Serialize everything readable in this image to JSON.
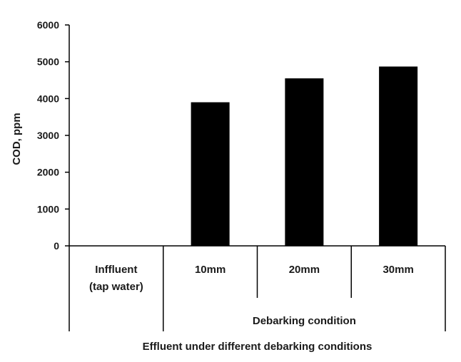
{
  "chart_data": {
    "type": "bar",
    "ylabel": "COD, ppm",
    "ylim": [
      0,
      6000
    ],
    "yticks": [
      0,
      1000,
      2000,
      3000,
      4000,
      5000,
      6000
    ],
    "grid": false,
    "legend": "none",
    "categories": [
      "Inffluent (tap water)",
      "10mm",
      "20mm",
      "30mm"
    ],
    "category_label_lines": [
      [
        "Inffluent",
        "(tap water)"
      ],
      [
        "10mm"
      ],
      [
        "20mm"
      ],
      [
        "30mm"
      ]
    ],
    "values": [
      0,
      3900,
      4550,
      4870
    ],
    "bar_color": "#000000",
    "group_label": "Debarking condition",
    "xlabel": "Effluent under different debarking conditions"
  }
}
